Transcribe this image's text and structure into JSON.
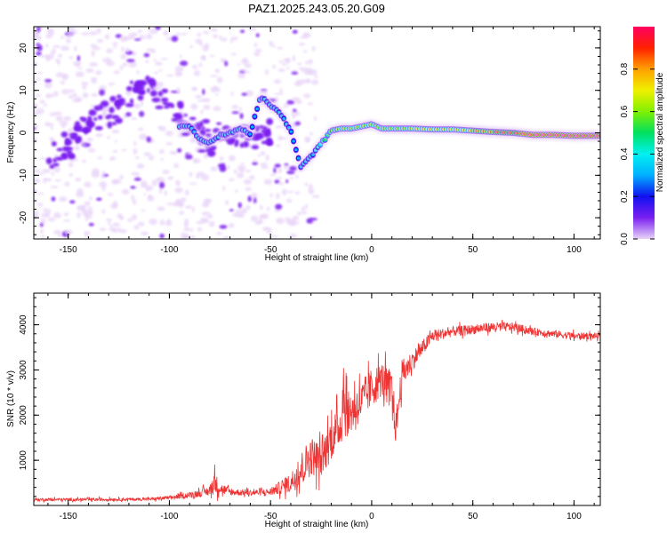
{
  "figure_title": "PAZ1.2025.243.05.20.G09",
  "chart_data": [
    {
      "type": "heatmap",
      "name": "spectrogram",
      "xlabel": "Height of straight line (km)",
      "ylabel": "Frequency (Hz)",
      "xlim": [
        -167,
        113
      ],
      "ylim": [
        -25,
        25
      ],
      "xticks": [
        -150,
        -100,
        -50,
        0,
        50,
        100
      ],
      "yticks": [
        -20,
        -10,
        0,
        10,
        20
      ],
      "xtick_labels": [
        "-150",
        "-100",
        "-50",
        "0",
        "50",
        "100"
      ],
      "ytick_labels": [
        "-20",
        "-10",
        "0",
        "10",
        "20"
      ],
      "colorbar": {
        "label": "Normalized spectral amplitude",
        "range": [
          0,
          1
        ],
        "ticks": [
          0.0,
          0.2,
          0.4,
          0.6,
          0.8
        ],
        "tick_labels": [
          "0.0",
          "0.2",
          "0.4",
          "0.6",
          "0.8"
        ],
        "colormap": [
          "#e8d4f8",
          "#7a1ff0",
          "#1010f0",
          "#00b0ff",
          "#00f0f0",
          "#00e060",
          "#80f000",
          "#f0f000",
          "#ffa000",
          "#ff2000",
          "#ff0060"
        ]
      },
      "ridge": {
        "description": "dominant frequency trace",
        "x": [
          -90,
          -85,
          -80,
          -75,
          -70,
          -65,
          -60,
          -55,
          -50,
          -45,
          -40,
          -35,
          -30,
          -25,
          -20,
          -15,
          -10,
          -5,
          0,
          5,
          10,
          20,
          30,
          40,
          50,
          60,
          70,
          80,
          90,
          100,
          110
        ],
        "y": [
          1.5,
          -1.5,
          -2.5,
          -0.5,
          0,
          1.0,
          -0.5,
          8.5,
          6.5,
          4.5,
          0.5,
          -8.0,
          -5.5,
          -2.5,
          0.5,
          1.0,
          1.0,
          1.5,
          2.0,
          1.0,
          1.0,
          1.0,
          0.8,
          0.8,
          0.5,
          0.2,
          0.0,
          -0.5,
          -0.5,
          -0.7,
          -0.7
        ],
        "amplitude": [
          0.25,
          0.25,
          0.25,
          0.25,
          0.3,
          0.3,
          0.35,
          0.3,
          0.3,
          0.3,
          0.35,
          0.3,
          0.3,
          0.45,
          0.55,
          0.6,
          0.6,
          0.6,
          0.65,
          0.6,
          0.6,
          0.65,
          0.7,
          0.7,
          0.75,
          0.85,
          0.9,
          0.95,
          0.95,
          0.95,
          0.95
        ]
      }
    },
    {
      "type": "line",
      "name": "snr",
      "xlabel": "Height of straight line (km)",
      "ylabel": "SNR (10 * v/v)",
      "xlim": [
        -167,
        113
      ],
      "ylim": [
        0,
        4700
      ],
      "xticks": [
        -150,
        -100,
        -50,
        0,
        50,
        100
      ],
      "yticks": [
        1000,
        2000,
        3000,
        4000
      ],
      "xtick_labels": [
        "-150",
        "-100",
        "-50",
        "0",
        "50",
        "100"
      ],
      "ytick_labels": [
        "1000",
        "2000",
        "3000",
        "4000"
      ],
      "color": "#ee3333",
      "envelope": {
        "x": [
          -167,
          -140,
          -110,
          -100,
          -90,
          -80,
          -78,
          -75,
          -70,
          -60,
          -50,
          -40,
          -35,
          -30,
          -25,
          -20,
          -15,
          -14,
          -12,
          -10,
          -5,
          0,
          5,
          10,
          12,
          15,
          20,
          30,
          40,
          50,
          60,
          70,
          80,
          90,
          100,
          113
        ],
        "mean": [
          130,
          130,
          140,
          170,
          230,
          320,
          520,
          380,
          300,
          280,
          300,
          500,
          800,
          1100,
          1000,
          1500,
          1800,
          2600,
          2000,
          2100,
          2300,
          2600,
          2800,
          2500,
          1700,
          2900,
          3200,
          3750,
          3850,
          3900,
          3950,
          3950,
          3850,
          3800,
          3750,
          3750
        ],
        "spread": [
          60,
          60,
          60,
          80,
          120,
          200,
          500,
          250,
          150,
          120,
          150,
          400,
          700,
          800,
          700,
          900,
          800,
          2000,
          900,
          900,
          800,
          800,
          700,
          900,
          700,
          600,
          400,
          250,
          200,
          200,
          200,
          180,
          150,
          150,
          150,
          120
        ]
      }
    }
  ]
}
